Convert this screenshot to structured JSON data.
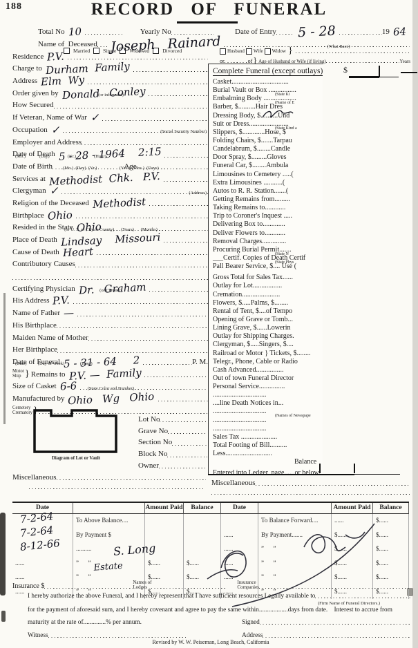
{
  "page": {
    "number": "188",
    "title": "RECORD OF FUNERAL",
    "revised": "Revised by W. W. Peiseman, Long Beach, California"
  },
  "header": {
    "total_no_label": "Total No",
    "total_no_value": "10",
    "yearly_no_label": "Yearly No",
    "entry_label": "Date of Entry",
    "entry_value": "5 - 28",
    "year_prefix": "19",
    "year_value": "64",
    "name_label": "Name of  Deceased",
    "name_value": "Joseph   Rainard",
    "race_note": "(What Race)",
    "marital_options": [
      "Married",
      "Single",
      "Widowed",
      "Divorced"
    ],
    "spouse_options": [
      "Husband",
      "Wife",
      "Widow"
    ],
    "or_label": "or",
    "of_label": "of",
    "age_note": "Age of Husband or Wife (if living)",
    "years_label": "Years"
  },
  "fields": [
    {
      "label": "Residence",
      "hw": "P.V."
    },
    {
      "label": "Charge to",
      "hw": "Durham  Family"
    },
    {
      "label": "Address",
      "hw": "Elm  Wy"
    },
    {
      "label": "Order given by",
      "hw": "Donald   Conley",
      "sub": "(or informant)",
      "subAlign": "c"
    },
    {
      "label": "How Secured"
    },
    {
      "label": "If Veteran, Name of War",
      "hw": "✓"
    },
    {
      "label": "Occupation",
      "hw": "✓",
      "sub": "(Social Security Number)",
      "subAlign": "r"
    },
    {
      "label": "Employer and Address"
    },
    {
      "label": "Date of Death",
      "hw": "5 - 28 - 1964    2:15",
      "sub": "(Mo.)   (Day)    (Yr.)    (Hour)"
    },
    {
      "label": "Date of Birth",
      "tail": "Age",
      "sub": "(Mo.) (Day) (Yr.)     (Yrs.) (Mos.) (Days)",
      "subAlign": "c"
    },
    {
      "label": "Services at",
      "hw": "Methodist  Chk.   P.V."
    },
    {
      "label": "Clergyman",
      "hw": "✓",
      "sub": "(Address)",
      "subAlign": "r"
    },
    {
      "label": "Religion of the Deceased",
      "hw": "Methodist"
    },
    {
      "label": "Birthplace",
      "hw": "Ohio"
    },
    {
      "label": "Resided in the State",
      "hw": "Ohio",
      "sub": "(or U. S. or City or County)  (Years)  (Months)",
      "subAlign": "c"
    },
    {
      "label": "Place of Death",
      "hw": "Lindsay    Missouri"
    },
    {
      "label": "Cause of Death",
      "hw": "Heart"
    },
    {
      "label": "Contributory Causes"
    },
    {
      "label": "",
      "dotsOnly": true
    },
    {
      "label": "Certifying Physician",
      "hw": "Dr.   Graham",
      "sub": "(or Coroner)",
      "subAlign": "c"
    },
    {
      "label": "His Address",
      "hw": "P.V."
    },
    {
      "label": "Name of Father",
      "hw": "—"
    },
    {
      "label": "His Birthplace"
    },
    {
      "label": "Maiden Name of Mother"
    },
    {
      "label": "Her Birthplace"
    },
    {
      "label": "Date of Funeral",
      "hw": "5 - 31 - 64     2",
      "end": "P. M.",
      "sub": "(Date)   (Day of Week)    (Hour)"
    },
    {
      "stack": [
        "Motor",
        "Ship"
      ],
      "label": "Remains to",
      "hw": "P.V. —  Family"
    },
    {
      "label": "Size of Casket",
      "hw": "6-6",
      "sub": "(State Color and Number)",
      "subAlign": "c"
    },
    {
      "label": "Manufactured by",
      "hw": "Ohio   Wg   Ohio"
    },
    {
      "stack": [
        "Cemetery",
        "Crematory"
      ],
      "label": ""
    }
  ],
  "misc_label": "Miscellaneous",
  "charges": {
    "dollar": "$",
    "items": [
      {
        "t": "Complete Funeral (except outlays)",
        "cls": "title"
      },
      {
        "t": "Casket................................."
      },
      {
        "t": "Burial Vault or Box ................",
        "sub": "(State Ki"
      },
      {
        "t": "Embalming Body ...................",
        "sub": "(Name of E"
      },
      {
        "t": "Barber, $..........Hair Dres"
      },
      {
        "t": "Dressing Body, $..........Und",
        "scrawl": true
      },
      {
        "t": "Suit or Dress.......................",
        "sub": "(State Kind a"
      },
      {
        "t": "Slippers, $.............Hose, $"
      },
      {
        "t": "Folding Chairs, $.......Tarpau"
      },
      {
        "t": "Candelabrum, $........Candle"
      },
      {
        "t": "Door Spray, $.........Gloves"
      },
      {
        "t": "Funeral Car, $........Ambula"
      },
      {
        "t": "Limousines to Cemetery .....("
      },
      {
        "t": "Extra Limousines ...........("
      },
      {
        "t": "Autos to R. R. Station.......("
      },
      {
        "t": "Getting Remains from........."
      },
      {
        "t": "Taking Remains to............"
      },
      {
        "t": "Trip to Coroner's Inquest ....."
      },
      {
        "t": "Delivering Box to............."
      },
      {
        "t": "Deliver Flowers to............"
      },
      {
        "t": "Removal Charges.............."
      },
      {
        "t": "Procuring Burial Permit.......",
        "sub": "(State N"
      },
      {
        "t": "___Certif. Copies of Death Certif",
        "sub": "(State Phys"
      },
      {
        "t": "Pall Bearer Service, $.... Use ("
      },
      {
        "t": "Gross Total for Sales Tax......",
        "cls": "gap"
      },
      {
        "t": "Outlay for Lot................."
      },
      {
        "t": "Cremation......................"
      },
      {
        "t": "Flowers, $.....Palms, $........"
      },
      {
        "t": "Rental of Tent, $....of Tempo"
      },
      {
        "t": "Opening of Grave or Tomb..."
      },
      {
        "t": "Lining Grave, $......Lowerin"
      },
      {
        "t": "Outlay for Shipping Charges."
      },
      {
        "t": "Clergyman, $.....Singers, $...."
      },
      {
        "t": "Railroad or Motor } Tickets, $........"
      },
      {
        "t": "Telegr., Phone, Cable or Radio"
      },
      {
        "t": "Cash Advanced................"
      },
      {
        "t": "Out of town Funeral Director"
      },
      {
        "t": "Personal Service..............."
      },
      {
        "t": "..............................."
      },
      {
        "t": "....line Death Notices in..."
      },
      {
        "t": "...............................",
        "sub": "(Names of Newspape"
      },
      {
        "t": "..............................."
      },
      {
        "t": "..............................."
      },
      {
        "t": "Sales Tax ....................."
      },
      {
        "t": "Total Footing of Bill.........."
      },
      {
        "t": "Less..........................."
      },
      {
        "t": "Balance",
        "cls": "balance"
      },
      {
        "t": "Entered into Ledger, page......or below.",
        "cls": "gap"
      }
    ],
    "right_misc": "Miscellaneous"
  },
  "diagram": {
    "caption": "Diagram of Lot or Vault",
    "lots": [
      "Lot No",
      "Grave No",
      "Section No",
      "Block No",
      "Owner"
    ]
  },
  "ledger": {
    "headers": [
      "Date",
      "",
      "Amount Paid",
      "Balance",
      "Date",
      "",
      "Amount Paid",
      "Balance"
    ],
    "rows": [
      [
        "",
        "To Above Balance....",
        "",
        "",
        "",
        "To Balance Forward....",
        "......",
        "$......"
      ],
      [
        "",
        "By Payment $",
        "",
        "",
        "......",
        "By Payment.......",
        "$......",
        "$......"
      ],
      [
        "",
        "..........",
        "",
        "",
        "......",
        "”   ”",
        "$......",
        "$......"
      ],
      [
        "......",
        "”   ”",
        "$......",
        "$......",
        "......",
        "”   ”",
        "$......",
        "$......"
      ],
      [
        "......",
        "”   ”",
        "$......",
        "$......",
        "......",
        "”   ”",
        "$......",
        "$......"
      ],
      [
        "......",
        "”   ”",
        "$......",
        "$......",
        "......",
        "”   ”",
        "$......",
        "$......"
      ]
    ],
    "handwriting": {
      "dates": [
        "7-2-64",
        "7-2-64",
        "8-12-66"
      ],
      "payment_name": "S. Long",
      "estate": "Estate"
    }
  },
  "footer": {
    "insurance_label": "Insurance $",
    "insurance_dots": "......................",
    "lodges_top": "Names of",
    "lodges_bottom": "Lodges",
    "companies_top": "Insurance",
    "companies_bottom": "Companies",
    "legal1": "I hereby authorize the above Funeral, and I hereby represent that I have sufficient resources Legally available to",
    "firm_note": "(Firm Name of Funeral Directors.)",
    "legal2": "for the payment of aforesaid sum, and I hereby covenant and agree to pay the same within..................days from date.    Interest to accrue from",
    "legal3": "maturity at the rate of..............% per annum.",
    "signed_label": "Signed",
    "witness_label": "Witness",
    "address_label": "Address"
  }
}
